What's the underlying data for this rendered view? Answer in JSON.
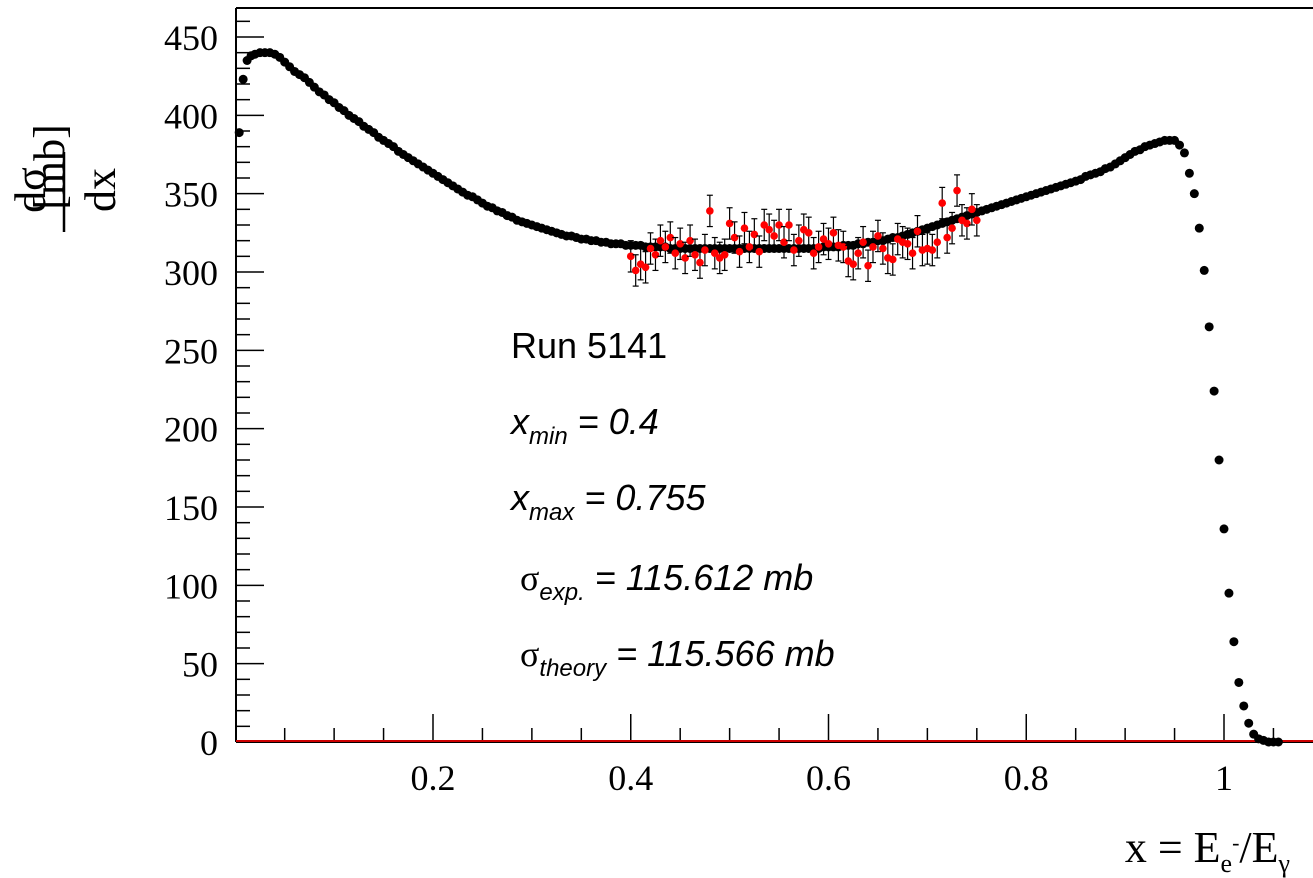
{
  "chart_data": {
    "type": "scatter",
    "title": "",
    "xlabel": {
      "base": "x = E",
      "sub1": "e",
      "sup1": "-",
      "mid": "/E",
      "sub2": "γ"
    },
    "ylabel": {
      "numerator": "dσ",
      "denominator": "dx",
      "unit": "[mb]"
    },
    "xlim": [
      0.0,
      1.1
    ],
    "ylim": [
      0,
      470
    ],
    "xticks": [
      0.2,
      0.4,
      0.6,
      0.8,
      1.0
    ],
    "xtick_labels": [
      "0.2",
      "0.4",
      "0.6",
      "0.8",
      "1"
    ],
    "yticks": [
      0,
      50,
      100,
      150,
      200,
      250,
      300,
      350,
      400,
      450
    ],
    "ytick_labels": [
      "0",
      "50",
      "100",
      "150",
      "200",
      "250",
      "300",
      "350",
      "400",
      "450"
    ],
    "grid": false,
    "legend": false,
    "colors": {
      "full_spectrum": "#000000",
      "selected_range": "#ff0000",
      "error_bar_full": "#0000cc",
      "error_bar_selected": "#000000",
      "baseline": "#cc0000"
    },
    "series": [
      {
        "points": [
          [
            0.004,
            389
          ],
          [
            0.008,
            423
          ],
          [
            0.012,
            435
          ],
          [
            0.016,
            438
          ],
          [
            0.02,
            439
          ],
          [
            0.025,
            440
          ],
          [
            0.03,
            440
          ],
          [
            0.035,
            440
          ],
          [
            0.04,
            439
          ],
          [
            0.045,
            437
          ],
          [
            0.05,
            434
          ],
          [
            0.055,
            431
          ],
          [
            0.06,
            428
          ],
          [
            0.065,
            426
          ],
          [
            0.07,
            424
          ],
          [
            0.075,
            421
          ],
          [
            0.08,
            418
          ],
          [
            0.085,
            415
          ],
          [
            0.09,
            413
          ],
          [
            0.095,
            410
          ],
          [
            0.1,
            408
          ],
          [
            0.105,
            405
          ],
          [
            0.11,
            403
          ],
          [
            0.115,
            400
          ],
          [
            0.12,
            398
          ],
          [
            0.125,
            396
          ],
          [
            0.13,
            393
          ],
          [
            0.135,
            391
          ],
          [
            0.14,
            389
          ],
          [
            0.145,
            386
          ],
          [
            0.15,
            384
          ],
          [
            0.155,
            382
          ],
          [
            0.16,
            380
          ],
          [
            0.165,
            377
          ],
          [
            0.17,
            375
          ],
          [
            0.175,
            373
          ],
          [
            0.18,
            371
          ],
          [
            0.185,
            369
          ],
          [
            0.19,
            367
          ],
          [
            0.195,
            365
          ],
          [
            0.2,
            363
          ],
          [
            0.205,
            361
          ],
          [
            0.21,
            359
          ],
          [
            0.215,
            357
          ],
          [
            0.22,
            355
          ],
          [
            0.225,
            353
          ],
          [
            0.23,
            351
          ],
          [
            0.235,
            349
          ],
          [
            0.24,
            348
          ],
          [
            0.245,
            346
          ],
          [
            0.25,
            344
          ],
          [
            0.255,
            342
          ],
          [
            0.26,
            341
          ],
          [
            0.265,
            339
          ],
          [
            0.27,
            338
          ],
          [
            0.275,
            336
          ],
          [
            0.28,
            335
          ],
          [
            0.285,
            333
          ],
          [
            0.29,
            332
          ],
          [
            0.295,
            331
          ],
          [
            0.3,
            330
          ],
          [
            0.305,
            329
          ],
          [
            0.31,
            328
          ],
          [
            0.315,
            327
          ],
          [
            0.32,
            326
          ],
          [
            0.325,
            325
          ],
          [
            0.33,
            324
          ],
          [
            0.335,
            323
          ],
          [
            0.34,
            323
          ],
          [
            0.345,
            322
          ],
          [
            0.35,
            321
          ],
          [
            0.355,
            321
          ],
          [
            0.36,
            320
          ],
          [
            0.365,
            320
          ],
          [
            0.37,
            319
          ],
          [
            0.375,
            319
          ],
          [
            0.38,
            318
          ],
          [
            0.385,
            318
          ],
          [
            0.39,
            318
          ],
          [
            0.395,
            317
          ],
          [
            0.4,
            317
          ],
          [
            0.405,
            317
          ],
          [
            0.41,
            317
          ],
          [
            0.415,
            316
          ],
          [
            0.42,
            316
          ],
          [
            0.425,
            316
          ],
          [
            0.43,
            316
          ],
          [
            0.435,
            316
          ],
          [
            0.44,
            315
          ],
          [
            0.445,
            315
          ],
          [
            0.45,
            315
          ],
          [
            0.455,
            315
          ],
          [
            0.46,
            315
          ],
          [
            0.465,
            315
          ],
          [
            0.47,
            315
          ],
          [
            0.475,
            315
          ],
          [
            0.48,
            315
          ],
          [
            0.485,
            315
          ],
          [
            0.49,
            315
          ],
          [
            0.495,
            315
          ],
          [
            0.5,
            315
          ],
          [
            0.505,
            315
          ],
          [
            0.51,
            315
          ],
          [
            0.515,
            315
          ],
          [
            0.52,
            315
          ],
          [
            0.525,
            315
          ],
          [
            0.53,
            315
          ],
          [
            0.535,
            315
          ],
          [
            0.54,
            315
          ],
          [
            0.545,
            315
          ],
          [
            0.55,
            315
          ],
          [
            0.555,
            315
          ],
          [
            0.56,
            315
          ],
          [
            0.565,
            315
          ],
          [
            0.57,
            315
          ],
          [
            0.575,
            315
          ],
          [
            0.58,
            315
          ],
          [
            0.585,
            315
          ],
          [
            0.59,
            315
          ],
          [
            0.595,
            316
          ],
          [
            0.6,
            316
          ],
          [
            0.605,
            316
          ],
          [
            0.61,
            316
          ],
          [
            0.615,
            317
          ],
          [
            0.62,
            317
          ],
          [
            0.625,
            317
          ],
          [
            0.63,
            318
          ],
          [
            0.635,
            318
          ],
          [
            0.64,
            319
          ],
          [
            0.645,
            319
          ],
          [
            0.65,
            320
          ],
          [
            0.655,
            320
          ],
          [
            0.66,
            321
          ],
          [
            0.665,
            322
          ],
          [
            0.67,
            322
          ],
          [
            0.675,
            323
          ],
          [
            0.68,
            324
          ],
          [
            0.685,
            325
          ],
          [
            0.69,
            326
          ],
          [
            0.695,
            327
          ],
          [
            0.7,
            328
          ],
          [
            0.705,
            329
          ],
          [
            0.71,
            330
          ],
          [
            0.715,
            331
          ],
          [
            0.72,
            332
          ],
          [
            0.725,
            333
          ],
          [
            0.73,
            334
          ],
          [
            0.735,
            335
          ],
          [
            0.74,
            336
          ],
          [
            0.745,
            337
          ],
          [
            0.75,
            338
          ],
          [
            0.755,
            339
          ],
          [
            0.76,
            340
          ],
          [
            0.765,
            341
          ],
          [
            0.77,
            342
          ],
          [
            0.775,
            343
          ],
          [
            0.78,
            344
          ],
          [
            0.785,
            345
          ],
          [
            0.79,
            346
          ],
          [
            0.795,
            347
          ],
          [
            0.8,
            348
          ],
          [
            0.805,
            349
          ],
          [
            0.81,
            350
          ],
          [
            0.815,
            351
          ],
          [
            0.82,
            352
          ],
          [
            0.825,
            353
          ],
          [
            0.83,
            354
          ],
          [
            0.835,
            355
          ],
          [
            0.84,
            356
          ],
          [
            0.845,
            357
          ],
          [
            0.85,
            358
          ],
          [
            0.855,
            359
          ],
          [
            0.86,
            361
          ],
          [
            0.865,
            362
          ],
          [
            0.87,
            363
          ],
          [
            0.875,
            364
          ],
          [
            0.88,
            366
          ],
          [
            0.885,
            367
          ],
          [
            0.89,
            369
          ],
          [
            0.895,
            371
          ],
          [
            0.9,
            373
          ],
          [
            0.905,
            375
          ],
          [
            0.91,
            377
          ],
          [
            0.915,
            378
          ],
          [
            0.92,
            380
          ],
          [
            0.925,
            381
          ],
          [
            0.93,
            382
          ],
          [
            0.935,
            383
          ],
          [
            0.94,
            384
          ],
          [
            0.945,
            384
          ],
          [
            0.95,
            384
          ],
          [
            0.955,
            381
          ],
          [
            0.96,
            376
          ],
          [
            0.965,
            363
          ],
          [
            0.97,
            350
          ],
          [
            0.975,
            328
          ],
          [
            0.98,
            301
          ],
          [
            0.985,
            265
          ],
          [
            0.99,
            224
          ],
          [
            0.995,
            180
          ],
          [
            1.0,
            136
          ],
          [
            1.005,
            95
          ],
          [
            1.01,
            64
          ],
          [
            1.015,
            38
          ],
          [
            1.02,
            23
          ],
          [
            1.025,
            12
          ],
          [
            1.03,
            5
          ],
          [
            1.035,
            2
          ],
          [
            1.04,
            1
          ],
          [
            1.045,
            0
          ],
          [
            1.05,
            0
          ],
          [
            1.055,
            0
          ]
        ]
      },
      {
        "points": [
          [
            0.4,
            310
          ],
          [
            0.405,
            301
          ],
          [
            0.41,
            305
          ],
          [
            0.415,
            303
          ],
          [
            0.42,
            315
          ],
          [
            0.425,
            311
          ],
          [
            0.43,
            320
          ],
          [
            0.435,
            316
          ],
          [
            0.44,
            322
          ],
          [
            0.445,
            312
          ],
          [
            0.45,
            318
          ],
          [
            0.455,
            309
          ],
          [
            0.46,
            320
          ],
          [
            0.465,
            311
          ],
          [
            0.47,
            306
          ],
          [
            0.475,
            314
          ],
          [
            0.48,
            339
          ],
          [
            0.485,
            312
          ],
          [
            0.49,
            309
          ],
          [
            0.495,
            311
          ],
          [
            0.5,
            331
          ],
          [
            0.505,
            322
          ],
          [
            0.51,
            313
          ],
          [
            0.515,
            328
          ],
          [
            0.52,
            316
          ],
          [
            0.525,
            324
          ],
          [
            0.53,
            313
          ],
          [
            0.535,
            330
          ],
          [
            0.54,
            327
          ],
          [
            0.545,
            323
          ],
          [
            0.55,
            330
          ],
          [
            0.555,
            319
          ],
          [
            0.56,
            330
          ],
          [
            0.565,
            314
          ],
          [
            0.57,
            320
          ],
          [
            0.575,
            327
          ],
          [
            0.58,
            325
          ],
          [
            0.585,
            312
          ],
          [
            0.59,
            316
          ],
          [
            0.595,
            321
          ],
          [
            0.6,
            318
          ],
          [
            0.605,
            325
          ],
          [
            0.61,
            317
          ],
          [
            0.615,
            316
          ],
          [
            0.62,
            307
          ],
          [
            0.625,
            305
          ],
          [
            0.63,
            312
          ],
          [
            0.635,
            319
          ],
          [
            0.64,
            304
          ],
          [
            0.645,
            316
          ],
          [
            0.65,
            323
          ],
          [
            0.655,
            315
          ],
          [
            0.66,
            309
          ],
          [
            0.665,
            308
          ],
          [
            0.67,
            321
          ],
          [
            0.675,
            319
          ],
          [
            0.68,
            318
          ],
          [
            0.685,
            312
          ],
          [
            0.69,
            326
          ],
          [
            0.695,
            314
          ],
          [
            0.7,
            315
          ],
          [
            0.705,
            314
          ],
          [
            0.71,
            319
          ],
          [
            0.715,
            344
          ],
          [
            0.72,
            322
          ],
          [
            0.725,
            328
          ],
          [
            0.73,
            352
          ],
          [
            0.735,
            333
          ],
          [
            0.74,
            331
          ],
          [
            0.745,
            340
          ],
          [
            0.75,
            333
          ]
        ]
      }
    ],
    "annotations": {
      "run": "Run 5141",
      "xmin": {
        "sym": "x",
        "sub": "min",
        "value": " = 0.4"
      },
      "xmax": {
        "sym": "x",
        "sub": "max",
        "value": " = 0.755"
      },
      "sigma_exp": {
        "sym": "σ",
        "sub": "exp.",
        "value": " = 115.612 mb"
      },
      "sigma_theory": {
        "sym": "σ",
        "sub": "theory",
        "value": " = 115.566 mb"
      }
    }
  }
}
